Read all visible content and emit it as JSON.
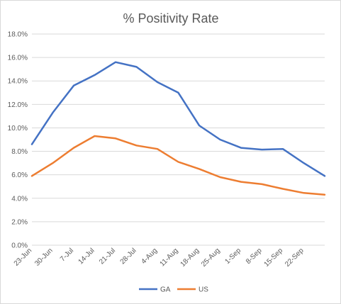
{
  "chart_data": {
    "type": "line",
    "title": "% Positivity Rate",
    "xlabel": "",
    "ylabel": "",
    "categories": [
      "23-Jun",
      "30-Jun",
      "7-Jul",
      "14-Jul",
      "21-Jul",
      "28-Jul",
      "4-Aug",
      "11-Aug",
      "18-Aug",
      "25-Aug",
      "1-Sep",
      "8-Sep",
      "15-Sep",
      "22-Sep",
      ""
    ],
    "ylim": [
      0,
      18
    ],
    "yticks": [
      "0.0%",
      "2.0%",
      "4.0%",
      "6.0%",
      "8.0%",
      "10.0%",
      "12.0%",
      "14.0%",
      "16.0%",
      "18.0%"
    ],
    "grid": true,
    "legend_position": "bottom",
    "series": [
      {
        "name": "GA",
        "color": "#4472C4",
        "values": [
          8.6,
          11.3,
          13.6,
          14.5,
          15.6,
          15.2,
          13.9,
          13.0,
          10.2,
          9.0,
          8.3,
          8.15,
          8.2,
          7.0,
          5.9
        ]
      },
      {
        "name": "US",
        "color": "#ED7D31",
        "values": [
          5.9,
          7.0,
          8.3,
          9.3,
          9.1,
          8.5,
          8.2,
          7.1,
          6.5,
          5.8,
          5.4,
          5.2,
          4.8,
          4.45,
          4.3
        ]
      }
    ]
  }
}
